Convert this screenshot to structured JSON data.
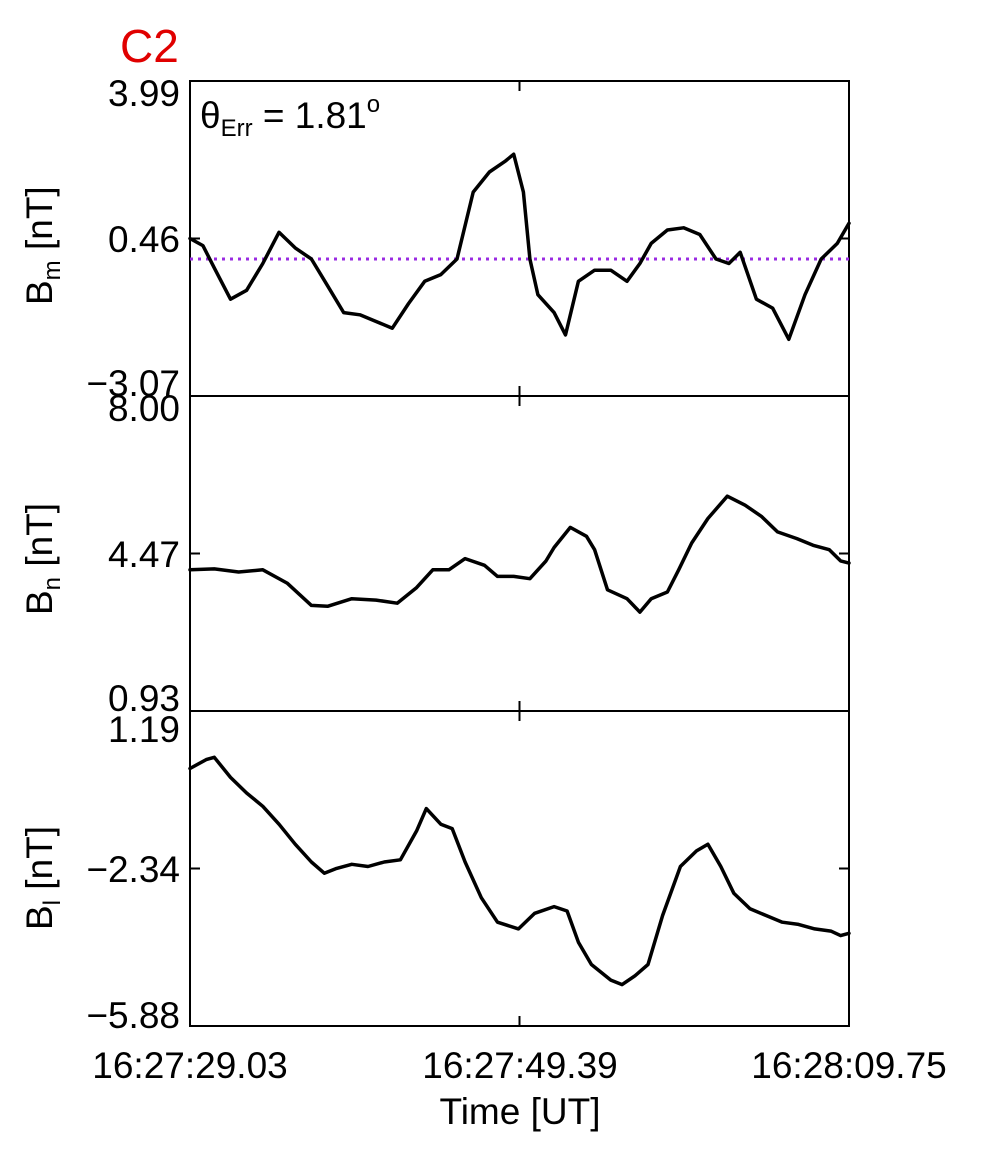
{
  "figure_label": "C2",
  "colors": {
    "label": "#e00000",
    "reference_line": "#9a2be2",
    "series": "#000000"
  },
  "annotation": {
    "prefix": "θ",
    "sub": "Err",
    "eq": " =  1.81",
    "sup": "o"
  },
  "chart_data": [
    {
      "type": "line",
      "ylabel": {
        "main": "B",
        "sub": "m",
        "unit": " [nT]"
      },
      "ylim": [
        -3.07,
        3.99
      ],
      "yticks": [
        "3.99",
        "0.46",
        "−3.07"
      ],
      "x_range": [
        0,
        40.72
      ],
      "reference_line": 0.0,
      "series": [
        {
          "values": [
            [
              0,
              0.46
            ],
            [
              0.8,
              0.3
            ],
            [
              1.5,
              -0.2
            ],
            [
              2.5,
              -0.9
            ],
            [
              3.5,
              -0.7
            ],
            [
              4.5,
              -0.1
            ],
            [
              5.5,
              0.6
            ],
            [
              6.5,
              0.25
            ],
            [
              7.5,
              0.0
            ],
            [
              8.5,
              -0.6
            ],
            [
              9.5,
              -1.2
            ],
            [
              10.5,
              -1.25
            ],
            [
              11.5,
              -1.4
            ],
            [
              12.5,
              -1.55
            ],
            [
              13.5,
              -1.0
            ],
            [
              14.5,
              -0.5
            ],
            [
              15.5,
              -0.35
            ],
            [
              16.5,
              0.0
            ],
            [
              17.5,
              1.5
            ],
            [
              18.5,
              1.95
            ],
            [
              19.5,
              2.2
            ],
            [
              20,
              2.35
            ],
            [
              20.6,
              1.5
            ],
            [
              21,
              0.0
            ],
            [
              21.5,
              -0.8
            ],
            [
              22.5,
              -1.2
            ],
            [
              23.2,
              -1.7
            ],
            [
              24,
              -0.5
            ],
            [
              25,
              -0.25
            ],
            [
              26,
              -0.25
            ],
            [
              27,
              -0.5
            ],
            [
              27.8,
              -0.1
            ],
            [
              28.5,
              0.35
            ],
            [
              29.5,
              0.65
            ],
            [
              30.5,
              0.7
            ],
            [
              31.5,
              0.55
            ],
            [
              32.5,
              0.0
            ],
            [
              33.3,
              -0.1
            ],
            [
              34,
              0.15
            ],
            [
              35,
              -0.9
            ],
            [
              36,
              -1.1
            ],
            [
              37,
              -1.8
            ],
            [
              38,
              -0.8
            ],
            [
              39,
              0.0
            ],
            [
              40,
              0.35
            ],
            [
              40.72,
              0.8
            ]
          ]
        }
      ]
    },
    {
      "type": "line",
      "ylabel": {
        "main": "B",
        "sub": "n",
        "unit": " [nT]"
      },
      "ylim": [
        0.93,
        8.0
      ],
      "yticks": [
        "8.00",
        "4.47",
        "0.93"
      ],
      "x_range": [
        0,
        40.72
      ],
      "series": [
        {
          "values": [
            [
              0,
              4.1
            ],
            [
              1.5,
              4.12
            ],
            [
              3,
              4.05
            ],
            [
              4.5,
              4.1
            ],
            [
              6,
              3.8
            ],
            [
              7.5,
              3.3
            ],
            [
              8.5,
              3.28
            ],
            [
              10,
              3.45
            ],
            [
              11.5,
              3.42
            ],
            [
              12.8,
              3.35
            ],
            [
              14,
              3.7
            ],
            [
              15,
              4.1
            ],
            [
              16,
              4.1
            ],
            [
              17,
              4.35
            ],
            [
              18.2,
              4.2
            ],
            [
              19,
              3.95
            ],
            [
              20,
              3.95
            ],
            [
              21,
              3.9
            ],
            [
              22,
              4.3
            ],
            [
              22.5,
              4.6
            ],
            [
              23.5,
              5.05
            ],
            [
              24.5,
              4.85
            ],
            [
              25,
              4.55
            ],
            [
              25.8,
              3.65
            ],
            [
              27,
              3.45
            ],
            [
              27.8,
              3.15
            ],
            [
              28.5,
              3.45
            ],
            [
              29.5,
              3.6
            ],
            [
              30.2,
              4.1
            ],
            [
              31,
              4.7
            ],
            [
              32,
              5.25
            ],
            [
              33.2,
              5.75
            ],
            [
              34.3,
              5.55
            ],
            [
              35.3,
              5.3
            ],
            [
              36.3,
              4.95
            ],
            [
              37.5,
              4.8
            ],
            [
              38.5,
              4.65
            ],
            [
              39.5,
              4.55
            ],
            [
              40.2,
              4.3
            ],
            [
              40.72,
              4.25
            ]
          ]
        }
      ]
    },
    {
      "type": "line",
      "ylabel": {
        "main": "B",
        "sub": "l",
        "unit": " [nT]"
      },
      "ylim": [
        -5.88,
        1.19
      ],
      "yticks": [
        "1.19",
        "−2.34",
        "−5.88"
      ],
      "x_range": [
        0,
        40.72
      ],
      "x_tick_labels": [
        "16:27:29.03",
        "16:27:49.39",
        "16:28:09.75"
      ],
      "xlabel": "Time [UT]",
      "series": [
        {
          "values": [
            [
              0,
              -0.1
            ],
            [
              1,
              0.1
            ],
            [
              1.5,
              0.15
            ],
            [
              2.5,
              -0.3
            ],
            [
              3.5,
              -0.65
            ],
            [
              4.5,
              -0.95
            ],
            [
              5.5,
              -1.35
            ],
            [
              6.5,
              -1.8
            ],
            [
              7.5,
              -2.2
            ],
            [
              8.3,
              -2.45
            ],
            [
              9,
              -2.35
            ],
            [
              10,
              -2.25
            ],
            [
              11,
              -2.3
            ],
            [
              12,
              -2.2
            ],
            [
              13,
              -2.15
            ],
            [
              14,
              -1.5
            ],
            [
              14.6,
              -1.0
            ],
            [
              15.5,
              -1.35
            ],
            [
              16.2,
              -1.45
            ],
            [
              17,
              -2.2
            ],
            [
              18,
              -3.0
            ],
            [
              19,
              -3.55
            ],
            [
              20.3,
              -3.7
            ],
            [
              21.3,
              -3.35
            ],
            [
              22.5,
              -3.2
            ],
            [
              23.3,
              -3.3
            ],
            [
              24,
              -4.0
            ],
            [
              24.8,
              -4.5
            ],
            [
              26,
              -4.85
            ],
            [
              26.7,
              -4.95
            ],
            [
              27.5,
              -4.75
            ],
            [
              28.3,
              -4.5
            ],
            [
              29.2,
              -3.4
            ],
            [
              30.3,
              -2.3
            ],
            [
              31.3,
              -1.95
            ],
            [
              32,
              -1.8
            ],
            [
              32.8,
              -2.3
            ],
            [
              33.6,
              -2.9
            ],
            [
              34.6,
              -3.25
            ],
            [
              35.6,
              -3.4
            ],
            [
              36.6,
              -3.55
            ],
            [
              37.6,
              -3.6
            ],
            [
              38.6,
              -3.7
            ],
            [
              39.6,
              -3.75
            ],
            [
              40.2,
              -3.85
            ],
            [
              40.72,
              -3.8
            ]
          ]
        }
      ]
    }
  ]
}
